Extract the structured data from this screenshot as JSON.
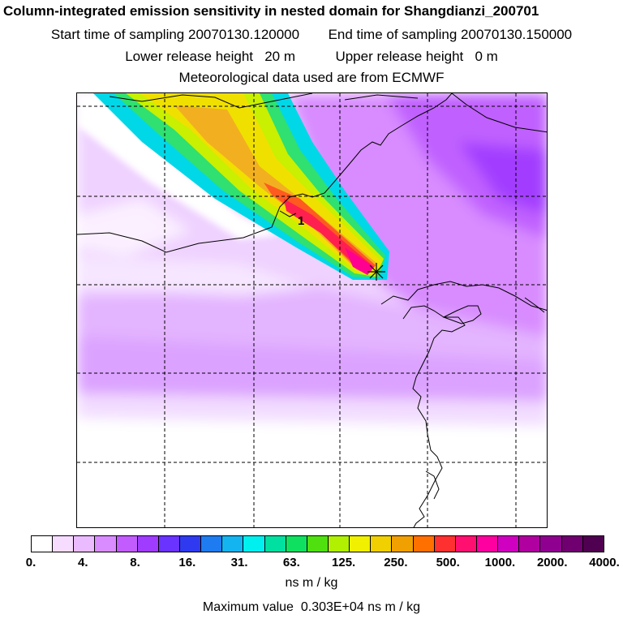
{
  "header": {
    "title": "Column-integrated emission sensitivity in nested domain for Shangdianzi_200701",
    "start_label": "Start time of sampling",
    "start_value": "20070130.120000",
    "end_label": "End time of sampling",
    "end_value": "20070130.150000",
    "lower_label": "Lower release height",
    "lower_value": "20 m",
    "upper_label": "Upper release height",
    "upper_value": "0 m",
    "met_text": "Meteorological data used are from ECMWF"
  },
  "map": {
    "release_marker_label": "1",
    "release_site_icon": "asterisk-star-icon",
    "grid": "dashed lines"
  },
  "colorbar": {
    "colors": [
      "#ffffff",
      "#f6dcff",
      "#eabcff",
      "#d98cff",
      "#c25cff",
      "#a03cff",
      "#6a33ff",
      "#2f3af0",
      "#1e7cf0",
      "#14b4f0",
      "#00f0f0",
      "#00e0a0",
      "#10e060",
      "#50e010",
      "#b0f000",
      "#f0f000",
      "#f0d000",
      "#f0a000",
      "#ff7000",
      "#ff3030",
      "#ff1070",
      "#ff00a0",
      "#d000c0",
      "#b000a0",
      "#900090",
      "#700070",
      "#500050"
    ],
    "tick_labels": [
      "0.",
      "4.",
      "8.",
      "16.",
      "31.",
      "63.",
      "125.",
      "250.",
      "500.",
      "1000.",
      "2000.",
      "4000."
    ],
    "unit": "ns m / kg"
  },
  "footer": {
    "max_label": "Maximum value",
    "max_value": "0.303E+04",
    "max_unit": "ns m / kg"
  }
}
